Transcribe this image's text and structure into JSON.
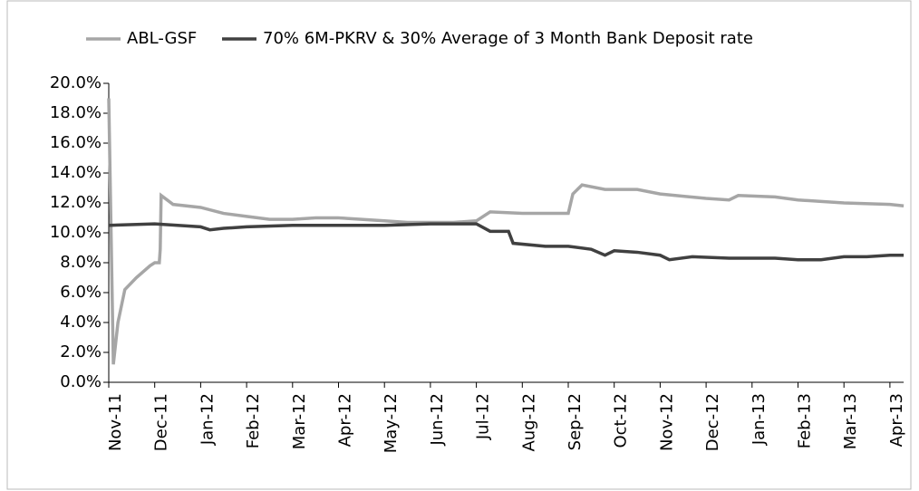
{
  "chart_data": {
    "type": "line",
    "legend": "top",
    "series": [
      {
        "name": "ABL-GSF",
        "color": "#a6a6a6",
        "x": [
          0,
          0.1,
          0.2,
          0.35,
          0.6,
          0.9,
          1.0,
          1.1,
          1.12,
          1.14,
          1.4,
          2,
          2.5,
          3,
          3.5,
          4,
          4.5,
          5,
          5.5,
          6,
          6.5,
          7,
          7.5,
          8,
          8.3,
          9,
          10,
          10.1,
          10.3,
          10.8,
          11.5,
          12,
          13,
          13.5,
          13.7,
          14.5,
          15,
          16,
          17,
          17.3
        ],
        "values": [
          19,
          1.2,
          4,
          6.2,
          7,
          7.8,
          8,
          8,
          8.9,
          12.5,
          11.9,
          11.7,
          11.3,
          11.1,
          10.9,
          10.9,
          11,
          11,
          10.9,
          10.8,
          10.7,
          10.7,
          10.7,
          10.8,
          11.4,
          11.3,
          11.3,
          12.6,
          13.2,
          12.9,
          12.9,
          12.6,
          12.3,
          12.2,
          12.5,
          12.4,
          12.2,
          12,
          11.9,
          11.8
        ]
      },
      {
        "name": "70% 6M-PKRV & 30% Average of 3 Month Bank Deposit rate",
        "color": "#404040",
        "x": [
          0,
          1,
          1.5,
          2,
          2.2,
          2.5,
          3,
          4,
          6,
          7,
          8,
          8.3,
          8.7,
          8.8,
          9.5,
          10,
          10.5,
          10.8,
          11,
          11.5,
          12,
          12.2,
          12.7,
          13.5,
          14.5,
          15,
          15.5,
          16,
          16.5,
          17,
          17.3
        ],
        "values": [
          10.5,
          10.6,
          10.5,
          10.4,
          10.2,
          10.3,
          10.4,
          10.5,
          10.5,
          10.6,
          10.6,
          10.1,
          10.1,
          9.3,
          9.1,
          9.1,
          8.9,
          8.5,
          8.8,
          8.7,
          8.5,
          8.2,
          8.4,
          8.3,
          8.3,
          8.2,
          8.2,
          8.4,
          8.4,
          8.5,
          8.5
        ]
      }
    ],
    "xlim": [
      0,
      17.3
    ],
    "xticks": [
      {
        "value": 0,
        "label": "Nov-11"
      },
      {
        "value": 1,
        "label": "Dec-11"
      },
      {
        "value": 2,
        "label": "Jan-12"
      },
      {
        "value": 3,
        "label": "Feb-12"
      },
      {
        "value": 4,
        "label": "Mar-12"
      },
      {
        "value": 5,
        "label": "Apr-12"
      },
      {
        "value": 6,
        "label": "May-12"
      },
      {
        "value": 7,
        "label": "Jun-12"
      },
      {
        "value": 8,
        "label": "Jul-12"
      },
      {
        "value": 9,
        "label": "Aug-12"
      },
      {
        "value": 10,
        "label": "Sep-12"
      },
      {
        "value": 11,
        "label": "Oct-12"
      },
      {
        "value": 12,
        "label": "Nov-12"
      },
      {
        "value": 13,
        "label": "Dec-12"
      },
      {
        "value": 14,
        "label": "Jan-13"
      },
      {
        "value": 15,
        "label": "Feb-13"
      },
      {
        "value": 16,
        "label": "Mar-13"
      },
      {
        "value": 17,
        "label": "Apr-13"
      }
    ],
    "ylim": [
      0,
      20
    ],
    "yticks": [
      {
        "value": 0,
        "label": "0.0%"
      },
      {
        "value": 2,
        "label": "2.0%"
      },
      {
        "value": 4,
        "label": "4.0%"
      },
      {
        "value": 6,
        "label": "6.0%"
      },
      {
        "value": 8,
        "label": "8.0%"
      },
      {
        "value": 10,
        "label": "10.0%"
      },
      {
        "value": 12,
        "label": "12.0%"
      },
      {
        "value": 14,
        "label": "14.0%"
      },
      {
        "value": 16,
        "label": "16.0%"
      },
      {
        "value": 18,
        "label": "18.0%"
      },
      {
        "value": 20,
        "label": "20.0%"
      }
    ],
    "grid": false
  }
}
